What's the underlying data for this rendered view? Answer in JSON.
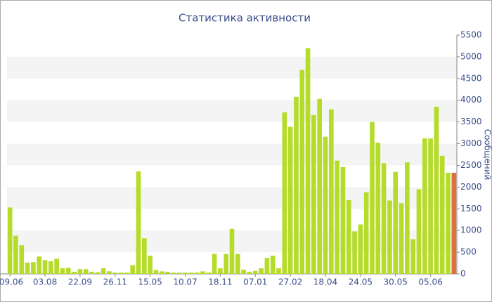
{
  "chart_data": {
    "type": "bar",
    "title": "Статистика активности",
    "y_label": "Сообщений",
    "categories": [
      "09.06",
      null,
      null,
      null,
      null,
      null,
      "03.08",
      null,
      null,
      null,
      null,
      null,
      "22.09",
      null,
      null,
      null,
      null,
      null,
      "26.11",
      null,
      null,
      null,
      null,
      null,
      "15.05",
      null,
      null,
      null,
      null,
      null,
      "10.07",
      null,
      null,
      null,
      null,
      null,
      "18.11",
      null,
      null,
      null,
      null,
      null,
      "07.01",
      null,
      null,
      null,
      null,
      null,
      "27.02",
      null,
      null,
      null,
      null,
      null,
      "18.04",
      null,
      null,
      null,
      null,
      null,
      "24.05",
      null,
      null,
      null,
      null,
      null,
      "30.05",
      null,
      null,
      null,
      null,
      null,
      "05.06",
      null,
      null,
      null,
      null
    ],
    "values": [
      1530,
      880,
      660,
      260,
      270,
      400,
      320,
      290,
      350,
      130,
      140,
      50,
      110,
      110,
      50,
      40,
      130,
      60,
      30,
      30,
      30,
      200,
      2360,
      820,
      420,
      90,
      60,
      50,
      30,
      30,
      30,
      30,
      30,
      60,
      30,
      460,
      130,
      460,
      1040,
      460,
      100,
      50,
      70,
      130,
      370,
      420,
      130,
      3720,
      3390,
      4080,
      4700,
      5200,
      3660,
      4030,
      3160,
      3790,
      2610,
      2460,
      1700,
      980,
      1140,
      1880,
      3500,
      3020,
      2550,
      1690,
      2350,
      1630,
      2570,
      800,
      1950,
      3120,
      3120,
      3850,
      2720,
      2330,
      2330
    ],
    "color": "#b5dc2a",
    "last_color": "#e07040",
    "ylim": [
      0,
      5500
    ],
    "yticks": [
      0,
      500,
      1000,
      1500,
      2000,
      2500,
      3000,
      3500,
      4000,
      4500,
      5000,
      5500
    ],
    "band_color": "#f4f4f4"
  }
}
